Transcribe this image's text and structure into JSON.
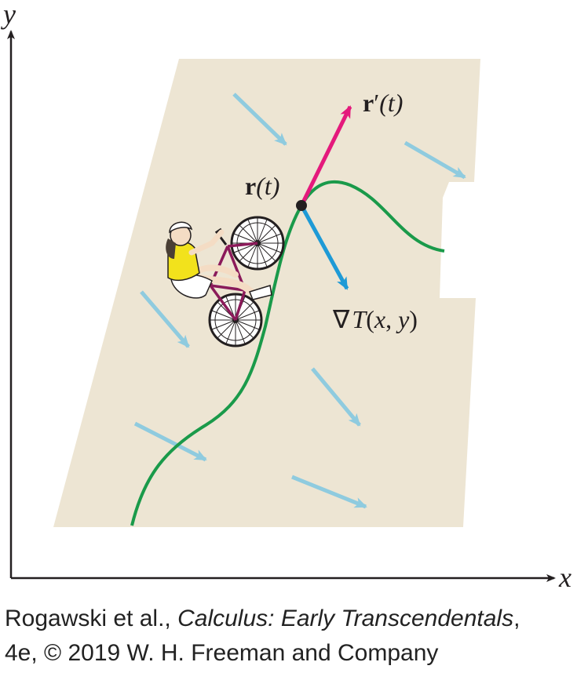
{
  "axes": {
    "x_label": "x",
    "y_label": "y"
  },
  "labels": {
    "position_main": "r",
    "position_arg": "(t)",
    "velocity_main": "r",
    "velocity_prime": "′",
    "velocity_arg": "(t)",
    "gradient_nabla": "∇",
    "gradient_T": "T",
    "gradient_args_open": "(",
    "gradient_x": "x",
    "gradient_comma": ", ",
    "gradient_y": "y",
    "gradient_args_close": ")"
  },
  "credit": {
    "line1_prefix": "Rogawski et al., ",
    "line1_title": "Calculus: Early Transcendentals",
    "line1_suffix": ",",
    "line2": "4e, © 2019 W. H. Freeman and Company"
  },
  "colors": {
    "region": "#ede5d3",
    "path": "#1a9a4a",
    "velocity": "#e4197c",
    "gradient": "#1e9ad6",
    "field_arrows": "#8fcbdf",
    "axes": "#231f20",
    "shirt": "#f2e21c",
    "bike_frame": "#8b1a5a"
  },
  "icons": {
    "cyclist": "cyclist-on-bicycle-icon"
  }
}
